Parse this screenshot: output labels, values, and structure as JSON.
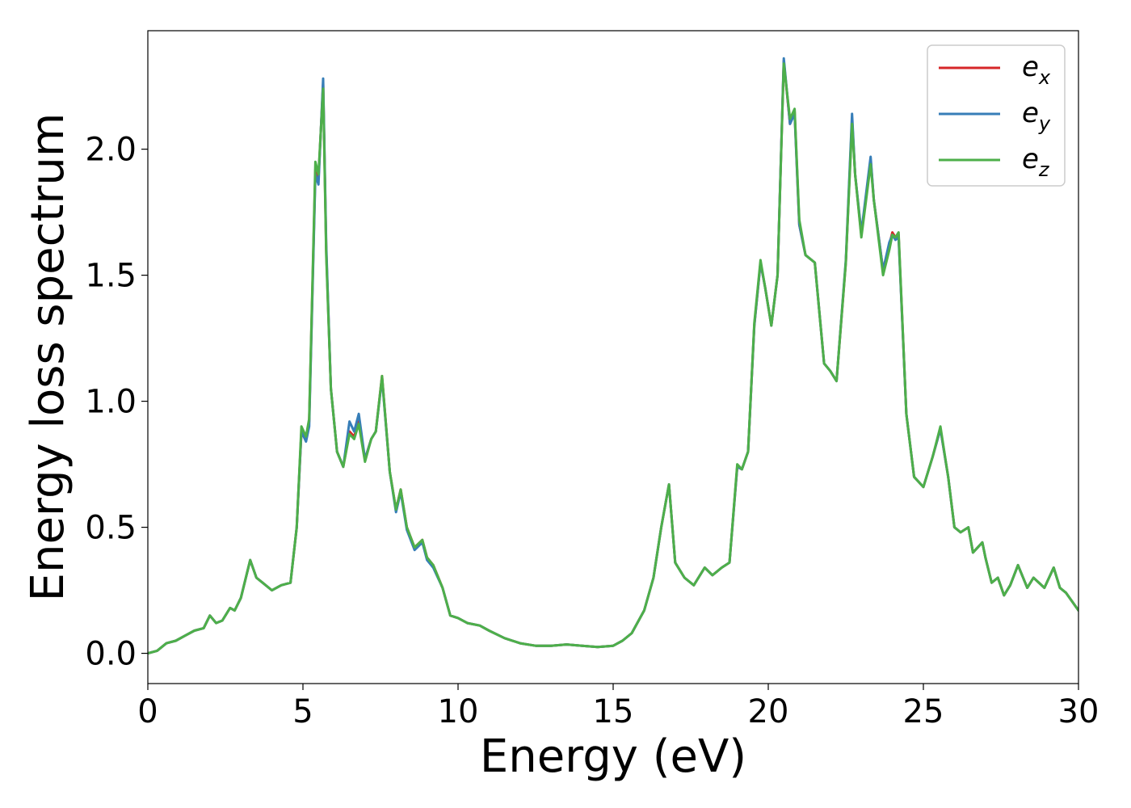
{
  "chart_data": {
    "type": "line",
    "title": "",
    "xlabel": "Energy (eV)",
    "ylabel": "Energy loss spectrum",
    "xlim": [
      0,
      30
    ],
    "ylim": [
      -0.12,
      2.47
    ],
    "xticks": [
      0,
      5,
      10,
      15,
      20,
      25,
      30
    ],
    "xtick_labels": [
      "0",
      "5",
      "10",
      "15",
      "20",
      "25",
      "30"
    ],
    "yticks": [
      0.0,
      0.5,
      1.0,
      1.5,
      2.0
    ],
    "ytick_labels": [
      "0.0",
      "0.5",
      "1.0",
      "1.5",
      "2.0"
    ],
    "grid": false,
    "legend_position": "top-right",
    "x": [
      0.0,
      0.3,
      0.6,
      0.9,
      1.2,
      1.5,
      1.8,
      2.0,
      2.2,
      2.4,
      2.65,
      2.8,
      3.0,
      3.3,
      3.5,
      3.7,
      4.0,
      4.3,
      4.6,
      4.8,
      4.95,
      5.1,
      5.2,
      5.4,
      5.5,
      5.65,
      5.75,
      5.9,
      6.1,
      6.3,
      6.5,
      6.65,
      6.8,
      7.0,
      7.2,
      7.35,
      7.55,
      7.8,
      8.0,
      8.15,
      8.35,
      8.6,
      8.85,
      9.0,
      9.2,
      9.5,
      9.75,
      10.0,
      10.3,
      10.7,
      11.0,
      11.5,
      12.0,
      12.5,
      13.0,
      13.5,
      14.0,
      14.5,
      15.0,
      15.3,
      15.6,
      16.0,
      16.3,
      16.55,
      16.8,
      17.0,
      17.3,
      17.6,
      17.95,
      18.2,
      18.5,
      18.75,
      19.0,
      19.15,
      19.35,
      19.55,
      19.75,
      19.9,
      20.1,
      20.3,
      20.5,
      20.7,
      20.85,
      21.0,
      21.2,
      21.5,
      21.8,
      22.0,
      22.2,
      22.5,
      22.7,
      22.8,
      23.0,
      23.3,
      23.4,
      23.7,
      23.9,
      24.0,
      24.1,
      24.2,
      24.45,
      24.7,
      25.0,
      25.3,
      25.55,
      25.8,
      26.0,
      26.2,
      26.45,
      26.6,
      26.9,
      27.0,
      27.2,
      27.4,
      27.6,
      27.8,
      28.05,
      28.35,
      28.55,
      28.9,
      29.2,
      29.4,
      29.6,
      30.0
    ],
    "series": [
      {
        "name": "e_x",
        "values": [
          0.0,
          0.01,
          0.04,
          0.05,
          0.07,
          0.09,
          0.1,
          0.15,
          0.12,
          0.13,
          0.18,
          0.17,
          0.22,
          0.37,
          0.3,
          0.28,
          0.25,
          0.27,
          0.28,
          0.5,
          0.88,
          0.85,
          0.92,
          1.92,
          1.88,
          2.26,
          1.6,
          1.05,
          0.8,
          0.74,
          0.88,
          0.86,
          0.92,
          0.77,
          0.85,
          0.88,
          1.1,
          0.72,
          0.57,
          0.65,
          0.5,
          0.42,
          0.45,
          0.38,
          0.35,
          0.26,
          0.15,
          0.14,
          0.12,
          0.11,
          0.09,
          0.06,
          0.04,
          0.03,
          0.03,
          0.035,
          0.03,
          0.025,
          0.03,
          0.05,
          0.08,
          0.17,
          0.3,
          0.5,
          0.67,
          0.36,
          0.3,
          0.27,
          0.34,
          0.31,
          0.34,
          0.36,
          0.74,
          0.73,
          0.8,
          1.3,
          1.55,
          1.45,
          1.3,
          1.5,
          2.35,
          2.1,
          2.15,
          1.7,
          1.58,
          1.55,
          1.15,
          1.12,
          1.08,
          1.55,
          2.12,
          1.9,
          1.66,
          1.96,
          1.8,
          1.52,
          1.62,
          1.67,
          1.65,
          1.66,
          0.95,
          0.7,
          0.66,
          0.78,
          0.89,
          0.7,
          0.5,
          0.48,
          0.5,
          0.4,
          0.44,
          0.38,
          0.28,
          0.3,
          0.23,
          0.27,
          0.35,
          0.26,
          0.3,
          0.26,
          0.34,
          0.26,
          0.24,
          0.17
        ]
      },
      {
        "name": "e_y",
        "values": [
          0.0,
          0.01,
          0.04,
          0.05,
          0.07,
          0.09,
          0.1,
          0.15,
          0.12,
          0.13,
          0.18,
          0.17,
          0.22,
          0.37,
          0.3,
          0.28,
          0.25,
          0.27,
          0.28,
          0.5,
          0.88,
          0.84,
          0.9,
          1.9,
          1.86,
          2.28,
          1.62,
          1.05,
          0.8,
          0.74,
          0.92,
          0.88,
          0.95,
          0.77,
          0.85,
          0.88,
          1.09,
          0.72,
          0.56,
          0.64,
          0.49,
          0.41,
          0.44,
          0.37,
          0.34,
          0.26,
          0.15,
          0.14,
          0.12,
          0.11,
          0.09,
          0.06,
          0.04,
          0.03,
          0.03,
          0.035,
          0.03,
          0.025,
          0.03,
          0.05,
          0.08,
          0.17,
          0.3,
          0.5,
          0.67,
          0.36,
          0.3,
          0.27,
          0.34,
          0.31,
          0.34,
          0.36,
          0.74,
          0.73,
          0.8,
          1.3,
          1.55,
          1.45,
          1.3,
          1.5,
          2.36,
          2.1,
          2.14,
          1.7,
          1.58,
          1.55,
          1.15,
          1.12,
          1.08,
          1.56,
          2.14,
          1.9,
          1.67,
          1.97,
          1.8,
          1.52,
          1.63,
          1.66,
          1.64,
          1.65,
          0.95,
          0.7,
          0.66,
          0.78,
          0.89,
          0.7,
          0.5,
          0.48,
          0.5,
          0.4,
          0.44,
          0.38,
          0.28,
          0.3,
          0.23,
          0.27,
          0.35,
          0.26,
          0.3,
          0.26,
          0.34,
          0.26,
          0.24,
          0.17
        ]
      },
      {
        "name": "e_z",
        "values": [
          0.0,
          0.01,
          0.04,
          0.05,
          0.07,
          0.09,
          0.1,
          0.15,
          0.12,
          0.13,
          0.18,
          0.17,
          0.22,
          0.37,
          0.3,
          0.28,
          0.25,
          0.27,
          0.28,
          0.5,
          0.9,
          0.86,
          0.93,
          1.95,
          1.9,
          2.24,
          1.58,
          1.05,
          0.8,
          0.74,
          0.87,
          0.85,
          0.91,
          0.76,
          0.85,
          0.88,
          1.1,
          0.72,
          0.57,
          0.65,
          0.5,
          0.42,
          0.45,
          0.38,
          0.35,
          0.26,
          0.15,
          0.14,
          0.12,
          0.11,
          0.09,
          0.06,
          0.04,
          0.03,
          0.03,
          0.035,
          0.03,
          0.025,
          0.03,
          0.05,
          0.08,
          0.17,
          0.3,
          0.5,
          0.67,
          0.36,
          0.3,
          0.27,
          0.34,
          0.31,
          0.34,
          0.36,
          0.75,
          0.73,
          0.8,
          1.31,
          1.56,
          1.45,
          1.3,
          1.5,
          2.34,
          2.12,
          2.16,
          1.72,
          1.58,
          1.55,
          1.15,
          1.12,
          1.08,
          1.55,
          2.1,
          1.9,
          1.65,
          1.94,
          1.8,
          1.5,
          1.6,
          1.66,
          1.65,
          1.67,
          0.95,
          0.7,
          0.66,
          0.78,
          0.9,
          0.7,
          0.5,
          0.48,
          0.5,
          0.4,
          0.44,
          0.38,
          0.28,
          0.3,
          0.23,
          0.27,
          0.35,
          0.26,
          0.3,
          0.26,
          0.34,
          0.26,
          0.24,
          0.17
        ]
      }
    ],
    "legend": [
      {
        "base": "e",
        "sub": "x",
        "series": "e_x"
      },
      {
        "base": "e",
        "sub": "y",
        "series": "e_y"
      },
      {
        "base": "e",
        "sub": "z",
        "series": "e_z"
      }
    ],
    "colors": {
      "e_x": "#d62728",
      "e_y": "#377eb8",
      "e_z": "#4daf4a"
    }
  }
}
